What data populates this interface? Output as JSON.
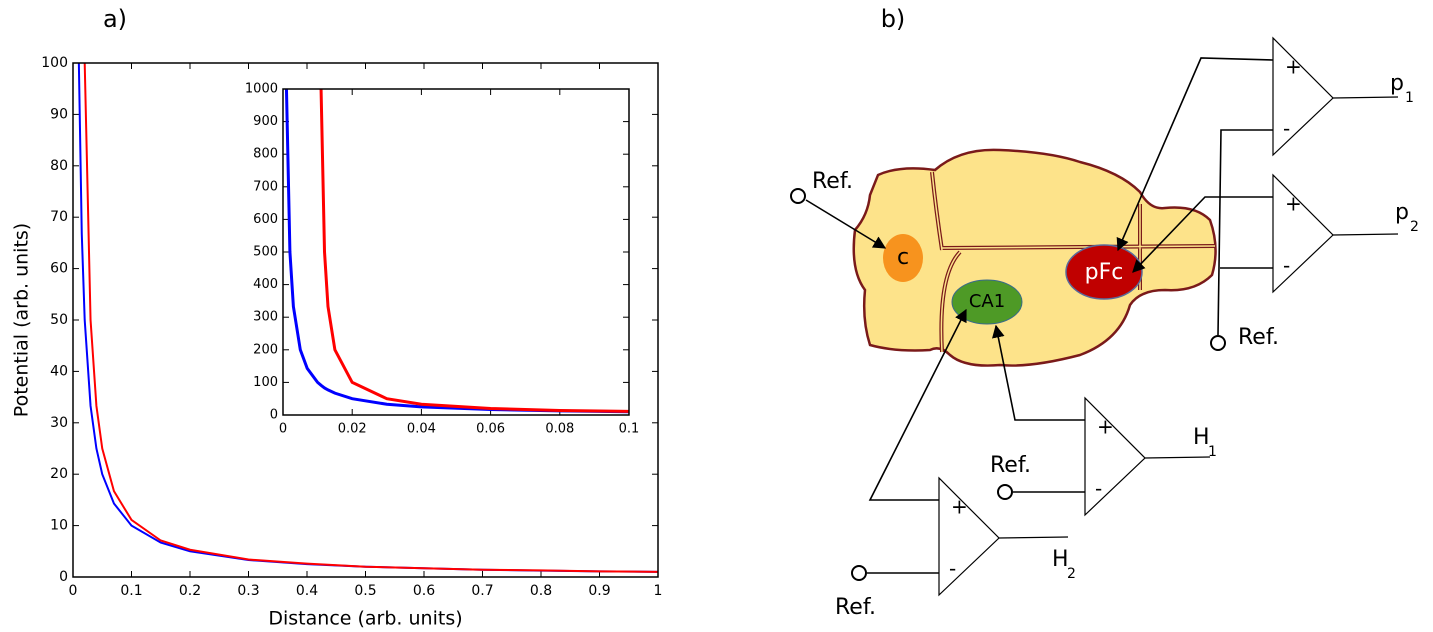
{
  "panel_labels": [
    "a)",
    "b)"
  ],
  "chart_data": [
    {
      "type": "line",
      "x_label": "Distance (arb. units)",
      "y_label": "Potential (arb. units)",
      "x": [
        0.01,
        0.015,
        0.02,
        0.03,
        0.04,
        0.05,
        0.07,
        0.1,
        0.15,
        0.2,
        0.3,
        0.4,
        0.5,
        0.6,
        0.7,
        0.8,
        0.9,
        1
      ],
      "series": [
        {
          "color": "#0000ff",
          "values": [
            100,
            66.7,
            50,
            33.3,
            25,
            20,
            14.3,
            10,
            6.7,
            5,
            3.3,
            2.5,
            2,
            1.7,
            1.4,
            1.25,
            1.1,
            1
          ]
        },
        {
          "color": "#ff0000",
          "values": [
            null,
            null,
            100,
            50,
            33.3,
            25,
            16.7,
            11.1,
            7.1,
            5.3,
            3.4,
            2.6,
            2,
            1.7,
            1.4,
            1.3,
            1.1,
            1
          ]
        }
      ],
      "xlim": [
        0,
        1
      ],
      "ylim": [
        0,
        100
      ],
      "xticks": [
        0,
        0.1,
        0.2,
        0.3,
        0.4,
        0.5,
        0.6,
        0.7,
        0.8,
        0.9,
        1
      ],
      "yticks": [
        0,
        10,
        20,
        30,
        40,
        50,
        60,
        70,
        80,
        90,
        100
      ]
    },
    {
      "type": "line",
      "x": [
        0.001,
        0.002,
        0.003,
        0.005,
        0.007,
        0.01,
        0.011,
        0.012,
        0.013,
        0.015,
        0.02,
        0.03,
        0.04,
        0.06,
        0.08,
        0.1
      ],
      "series": [
        {
          "color": "#0000ff",
          "values": [
            1000,
            500,
            333,
            200,
            143,
            100,
            91,
            83,
            77,
            67,
            50,
            33,
            25,
            17,
            12.5,
            10
          ]
        },
        {
          "color": "#ff0000",
          "values": [
            null,
            null,
            null,
            null,
            null,
            null,
            1000,
            500,
            333,
            200,
            100,
            50,
            33,
            20,
            14,
            11
          ]
        }
      ],
      "xlim": [
        0,
        0.1
      ],
      "ylim": [
        0,
        1000
      ],
      "xticks": [
        0,
        0.02,
        0.04,
        0.06,
        0.08,
        0.1
      ],
      "yticks": [
        0,
        100,
        200,
        300,
        400,
        500,
        600,
        700,
        800,
        900,
        1000
      ]
    }
  ],
  "diagram": {
    "regions": [
      "c",
      "CA1",
      "pFc"
    ],
    "references": [
      "Ref.",
      "Ref.",
      "Ref.",
      "Ref."
    ],
    "amplifiers": [
      {
        "plus": "+",
        "minus": "-",
        "output": "p",
        "index": "1"
      },
      {
        "plus": "+",
        "minus": "-",
        "output": "p",
        "index": "2"
      },
      {
        "plus": "+",
        "minus": "-",
        "output": "H",
        "index": "1"
      },
      {
        "plus": "+",
        "minus": "-",
        "output": "H",
        "index": "2"
      }
    ]
  }
}
